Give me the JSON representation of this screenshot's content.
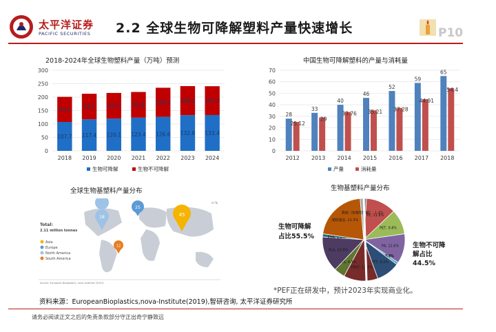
{
  "header": {
    "logo_cn": "太平洋证券",
    "logo_en": "PACIFIC SECURITIES",
    "title": "2.2 全球生物可降解塑料产量快速增长",
    "page_number": "P10",
    "accent_color": "#b71c1c"
  },
  "chart_data": [
    {
      "type": "bar",
      "stacked": true,
      "title": "2018-2024年全球生物塑料产量（万吨）预测",
      "categories": [
        "2018",
        "2019",
        "2020",
        "2021",
        "2022",
        "2023",
        "2024"
      ],
      "series": [
        {
          "name": "生物可降解",
          "color": "#1f6fc6",
          "values": [
            107.7,
            117.4,
            120.1,
            123.4,
            126.6,
            132.8,
            133.4
          ]
        },
        {
          "name": "生物不可降解",
          "color": "#c00000",
          "values": [
            93.4,
            95.1,
            95.5,
            95.8,
            108.3,
            108.2,
            107.2
          ]
        }
      ],
      "ylim": [
        0,
        300
      ],
      "yticks": [
        0,
        50,
        100,
        150,
        200,
        250,
        300
      ],
      "legend": "bottom"
    },
    {
      "type": "bar",
      "title": "中国生物可降解塑料的产量与消耗量",
      "categories": [
        "2012",
        "2013",
        "2014",
        "2015",
        "2016",
        "2017",
        "2018"
      ],
      "series": [
        {
          "name": "产量",
          "color": "#4f81bd",
          "values": [
            28,
            33,
            40,
            46,
            52,
            59,
            65
          ]
        },
        {
          "name": "消耗量",
          "color": "#c0504d",
          "values": [
            25.12,
            29,
            33.76,
            35.21,
            37.28,
            44.91,
            54.4
          ]
        }
      ],
      "value_labels": [
        [
          "28",
          "33",
          "40",
          "46",
          "52",
          "59",
          "65"
        ],
        [
          "25.12",
          "29",
          "33.76",
          "35.21",
          "37.28",
          "44.91",
          "54.4"
        ]
      ],
      "ylim": [
        0,
        70
      ],
      "yticks": [
        0,
        10,
        20,
        30,
        40,
        50,
        60,
        70
      ],
      "legend": "bottom"
    },
    {
      "type": "pie",
      "title": "生物基塑料产量分布",
      "slices": [
        {
          "label": "其他（生物不可降解）, 1.1%",
          "value": 1.1,
          "color": "#7f7f7f"
        },
        {
          "label": "PE, 11.8%",
          "value": 11.8,
          "color": "#c0504d"
        },
        {
          "label": "PET, 9.8%",
          "value": 9.8,
          "color": "#9bbb59"
        },
        {
          "label": "PA, 11.6%",
          "value": 11.6,
          "color": "#8064a2"
        },
        {
          "label": "PP, 0.9%",
          "value": 0.9,
          "color": "#4bacc6"
        },
        {
          "label": "PEF, 0.0%",
          "value": 0.0,
          "color": "#f79646"
        },
        {
          "label": "PTT, 9.2%",
          "value": 9.2,
          "color": "#2c4d75"
        },
        {
          "label": "PBAT, 13.4%",
          "value": 13.4,
          "color": "#772c2a"
        },
        {
          "label": "PBS, 4.3%",
          "value": 4.3,
          "color": "#5f7530"
        },
        {
          "label": "PLA, 13.9%",
          "value": 13.9,
          "color": "#4d3b62"
        },
        {
          "label": "PHA, 1.2%",
          "value": 1.2,
          "color": "#276a7c"
        },
        {
          "label": "淀粉混合, 21.3%",
          "value": 21.3,
          "color": "#b65708"
        },
        {
          "label": "其他（生物可降解）, 1.4%",
          "value": 1.4,
          "color": "#a5a5a5"
        }
      ],
      "annotations": {
        "left": "生物可降解占比55.5%",
        "left_line1": "生物可降解",
        "left_line2": "占比55.5%",
        "right_line1": "生物不可降",
        "right_line2": "解占比",
        "right_line3": "44.5%"
      }
    }
  ],
  "map": {
    "title": "全球生物基塑料产量分布",
    "total_label": "Total:",
    "total_value": "2.11 million tonnes",
    "unit": "in %",
    "legend": [
      {
        "name": "Asia",
        "color": "#f5b400"
      },
      {
        "name": "Europe",
        "color": "#5b9bd5"
      },
      {
        "name": "North America",
        "color": "#9dc3e6"
      },
      {
        "name": "South America",
        "color": "#e67e22"
      }
    ],
    "pins": [
      {
        "region": "North America",
        "value": "18",
        "color": "#9dc3e6"
      },
      {
        "region": "Europe",
        "value": "25",
        "color": "#5b9bd5"
      },
      {
        "region": "Asia",
        "value": "45",
        "color": "#f5b400"
      },
      {
        "region": "South America",
        "value": "12",
        "color": "#e67e22"
      }
    ],
    "source": "Source: European Bioplastics, nova-Institute (2019)"
  },
  "footer": {
    "note": "*PEF正在研发中，预计2023年实现商业化。",
    "source": "资料来源：EuropeanBioplastics,nova-Institute(2019),智研咨询, 太平洋证券研究所",
    "disclaimer": "请务必阅读正文之后的免责条款部分守正出奇宁静致远"
  }
}
